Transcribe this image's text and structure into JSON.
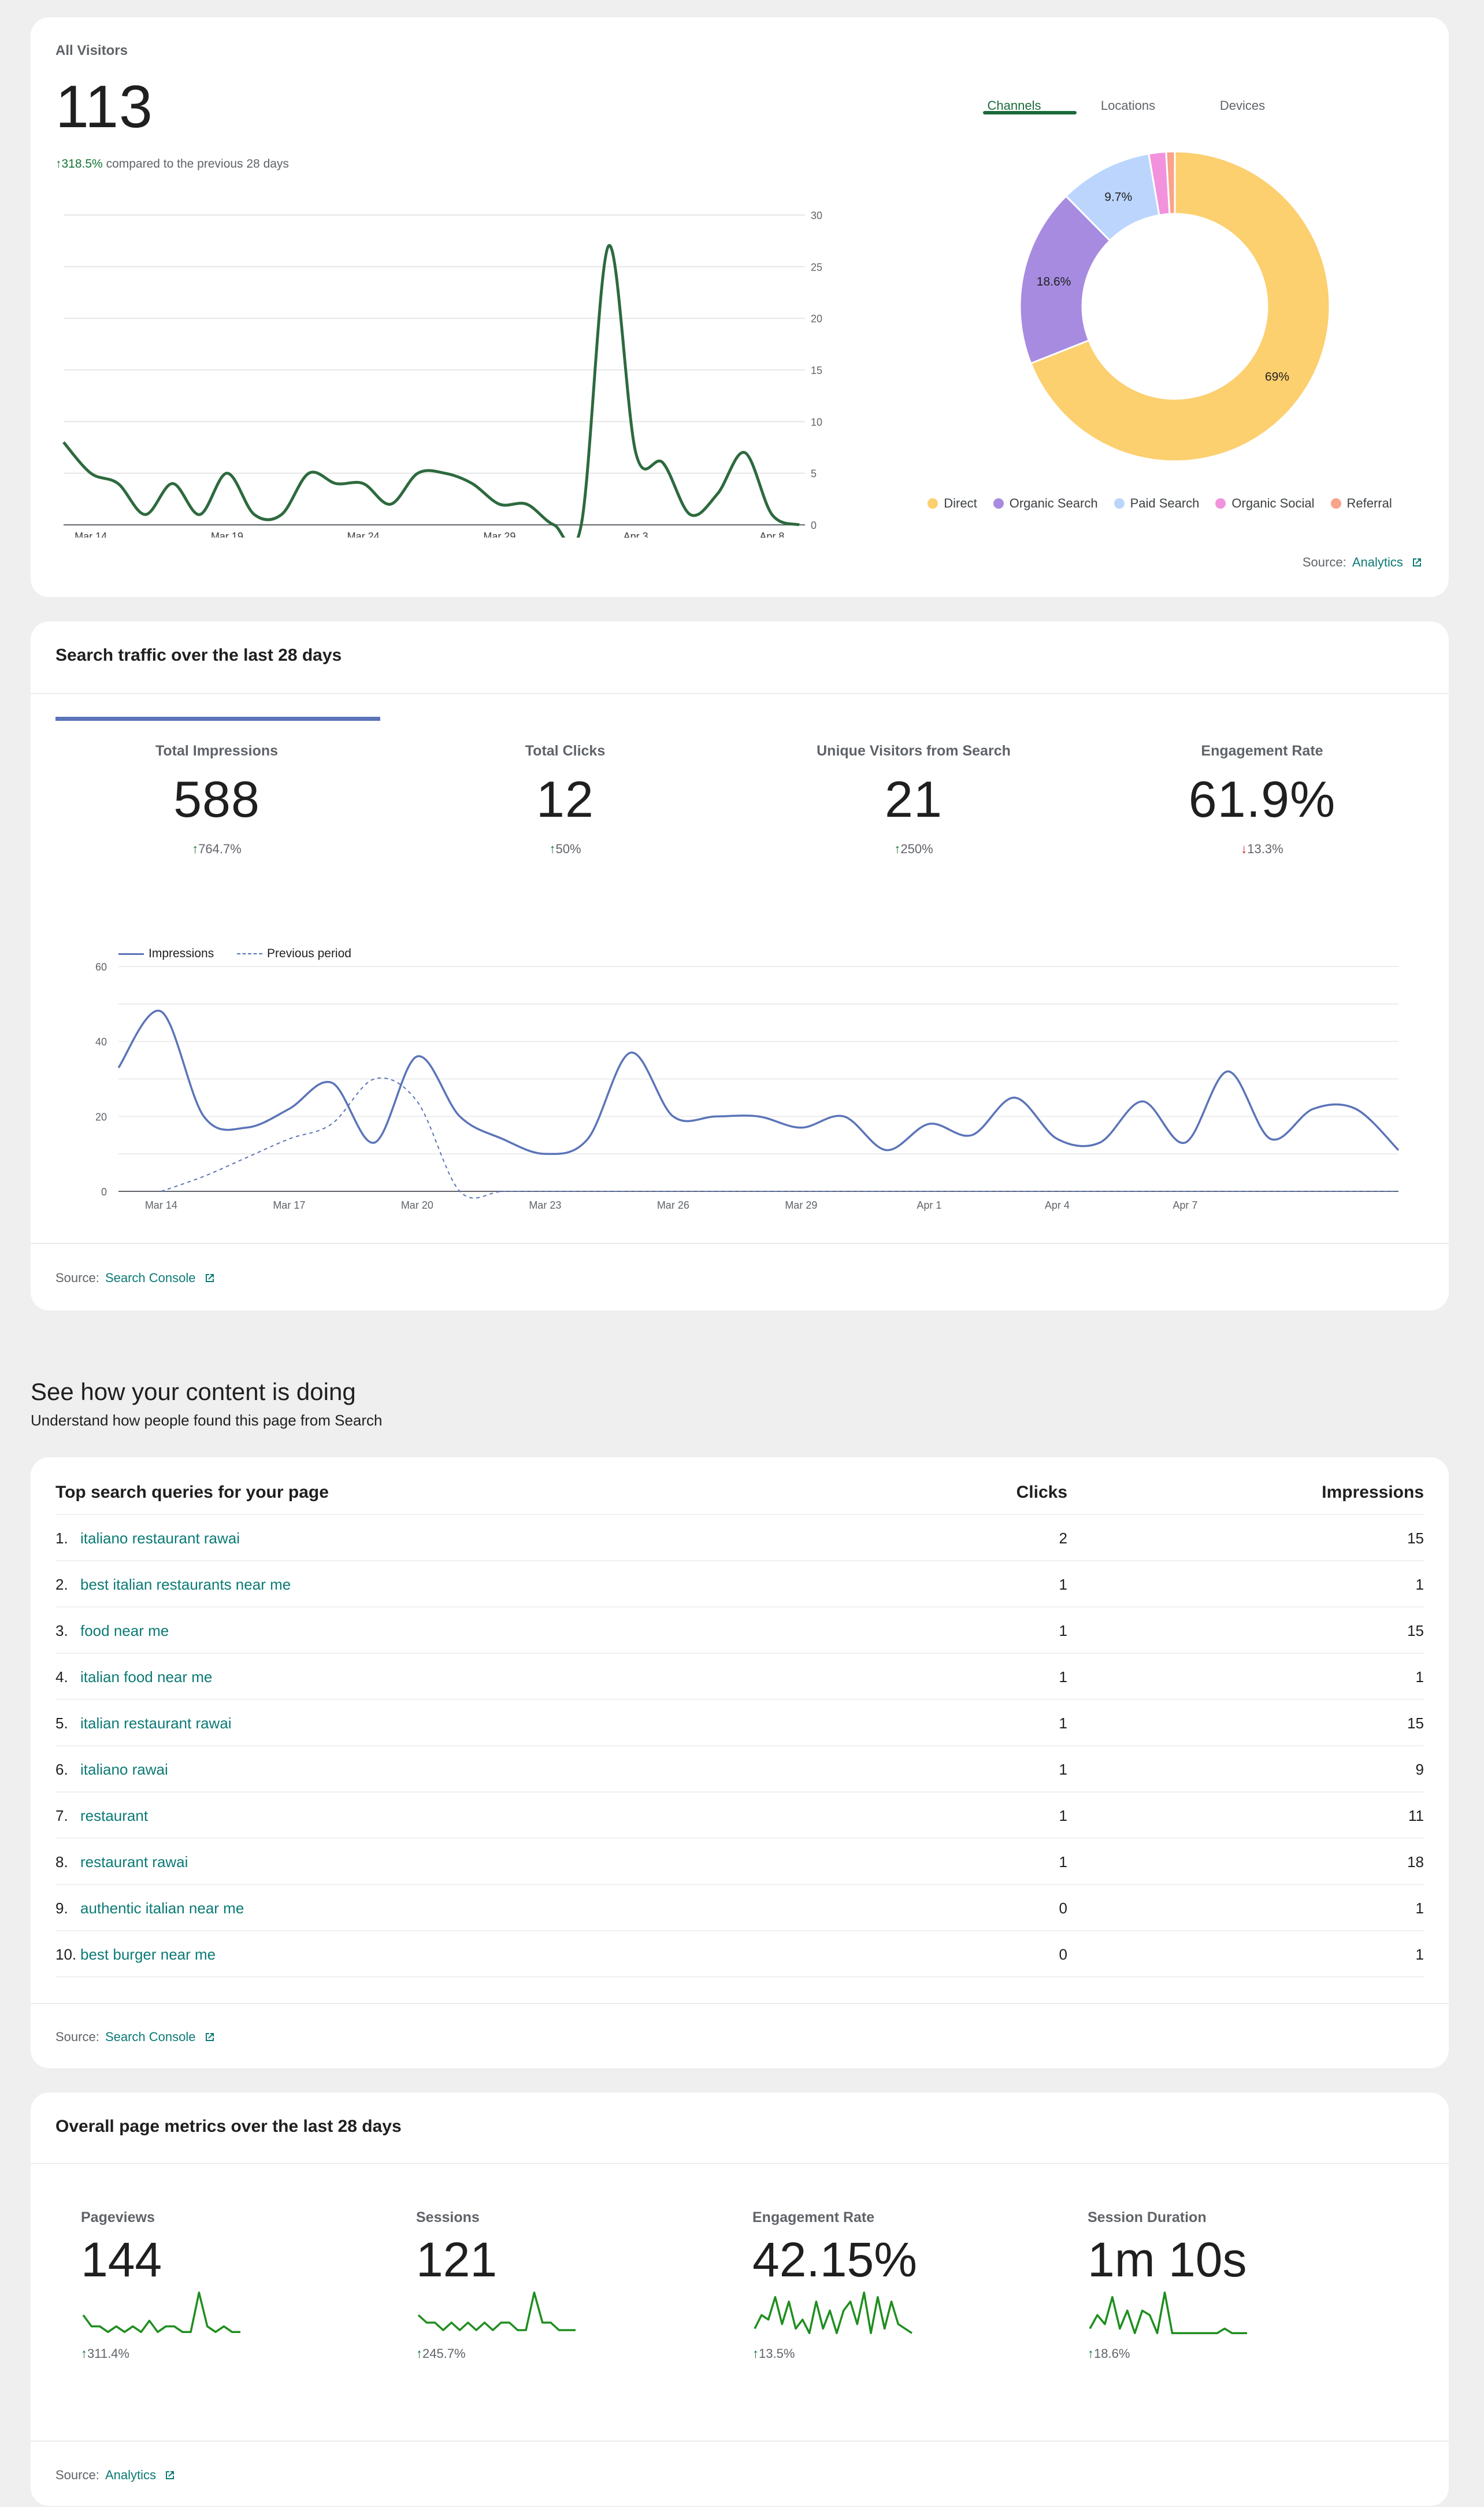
{
  "visitors_card": {
    "title": "All Visitors",
    "total": "113",
    "change": "318.5%",
    "change_suffix": "compared to the previous 28 days",
    "tabs": [
      "Channels",
      "Locations",
      "Devices"
    ],
    "source_label": "Source:",
    "source_link": "Analytics"
  },
  "search_card": {
    "title": "Search traffic over the last 28 days",
    "stats": [
      {
        "label": "Total Impressions",
        "value": "588",
        "change": "764.7%",
        "direction": "up"
      },
      {
        "label": "Total Clicks",
        "value": "12",
        "change": "50%",
        "direction": "up"
      },
      {
        "label": "Unique Visitors from Search",
        "value": "21",
        "change": "250%",
        "direction": "up"
      },
      {
        "label": "Engagement Rate",
        "value": "61.9%",
        "change": "13.3%",
        "direction": "down"
      }
    ],
    "legend": {
      "impressions": "Impressions",
      "previous": "Previous period"
    },
    "source_label": "Source:",
    "source_link": "Search Console"
  },
  "content_section": {
    "title": "See how your content is doing",
    "subtitle": "Understand how people found this page from Search"
  },
  "queries_card": {
    "headers": {
      "query": "Top search queries for your page",
      "clicks": "Clicks",
      "impressions": "Impressions"
    },
    "rows": [
      {
        "rank": "1.",
        "query": "italiano restaurant rawai",
        "clicks": "2",
        "impressions": "15"
      },
      {
        "rank": "2.",
        "query": "best italian restaurants near me",
        "clicks": "1",
        "impressions": "1"
      },
      {
        "rank": "3.",
        "query": "food near me",
        "clicks": "1",
        "impressions": "15"
      },
      {
        "rank": "4.",
        "query": "italian food near me",
        "clicks": "1",
        "impressions": "1"
      },
      {
        "rank": "5.",
        "query": "italian restaurant rawai",
        "clicks": "1",
        "impressions": "15"
      },
      {
        "rank": "6.",
        "query": "italiano rawai",
        "clicks": "1",
        "impressions": "9"
      },
      {
        "rank": "7.",
        "query": "restaurant",
        "clicks": "1",
        "impressions": "11"
      },
      {
        "rank": "8.",
        "query": "restaurant rawai",
        "clicks": "1",
        "impressions": "18"
      },
      {
        "rank": "9.",
        "query": "authentic italian near me",
        "clicks": "0",
        "impressions": "1"
      },
      {
        "rank": "10.",
        "query": "best burger near me",
        "clicks": "0",
        "impressions": "1"
      }
    ],
    "source_label": "Source:",
    "source_link": "Search Console"
  },
  "metrics_card": {
    "title": "Overall page metrics over the last 28 days",
    "metrics": [
      {
        "label": "Pageviews",
        "value": "144",
        "change": "311.4%"
      },
      {
        "label": "Sessions",
        "value": "121",
        "change": "245.7%"
      },
      {
        "label": "Engagement Rate",
        "value": "42.15%",
        "change": "13.5%"
      },
      {
        "label": "Session Duration",
        "value": "1m 10s",
        "change": "18.6%"
      }
    ],
    "source_label": "Source:",
    "source_link": "Analytics"
  },
  "colors": {
    "green": "#2d6a3e",
    "blue": "#5b74b8",
    "link": "#0b7a75",
    "spark": "#1e8e1e"
  },
  "chart_data": [
    {
      "type": "line",
      "title": "All Visitors",
      "x_ticks": [
        "Mar 14",
        "Mar 19",
        "Mar 24",
        "Mar 29",
        "Apr 3",
        "Apr 8"
      ],
      "x": [
        0,
        1,
        2,
        3,
        4,
        5,
        6,
        7,
        8,
        9,
        10,
        11,
        12,
        13,
        14,
        15,
        16,
        17,
        18,
        19,
        20,
        21,
        22,
        23,
        24,
        25,
        26,
        27
      ],
      "values": [
        8,
        5,
        4,
        1,
        4,
        1,
        5,
        1,
        1,
        5,
        4,
        4,
        2,
        5,
        5,
        4,
        2,
        2,
        0,
        0,
        27,
        7,
        6,
        1,
        3,
        7,
        1,
        0
      ],
      "y_ticks": [
        "0",
        "5",
        "10",
        "15",
        "20",
        "25",
        "30"
      ],
      "ylim": [
        0,
        30
      ],
      "color": "#2d6a3e"
    },
    {
      "type": "pie",
      "title": "Channels",
      "labels": [
        "Direct",
        "Organic Search",
        "Paid Search",
        "Organic Social",
        "Referral"
      ],
      "values": [
        69,
        18.6,
        9.7,
        1.8,
        0.9
      ],
      "slice_labels": [
        "69%",
        "18.6%",
        "9.7%",
        "",
        ""
      ],
      "colors": [
        "#fccf6f",
        "#a78be0",
        "#bcd5fd",
        "#f292dc",
        "#f8a38a"
      ]
    },
    {
      "type": "line",
      "title": "Search traffic",
      "x_ticks": [
        "Mar 14",
        "Mar 17",
        "Mar 20",
        "Mar 23",
        "Mar 26",
        "Mar 29",
        "Apr 1",
        "Apr 4",
        "Apr 7"
      ],
      "series": [
        {
          "name": "Impressions",
          "values": [
            33,
            48,
            20,
            17,
            22,
            29,
            13,
            36,
            20,
            14,
            10,
            14,
            37,
            20,
            20,
            20,
            17,
            20,
            11,
            18,
            15,
            25,
            14,
            13,
            24,
            13,
            32,
            14,
            22,
            22,
            11
          ]
        },
        {
          "name": "Previous period",
          "values": [
            null,
            0,
            4,
            9,
            14,
            18,
            30,
            24,
            0,
            0,
            0,
            0,
            0,
            0,
            0,
            0,
            0,
            0,
            0,
            0,
            0,
            0,
            0,
            0,
            0,
            0,
            0,
            0,
            0,
            0,
            0
          ]
        }
      ],
      "y_ticks": [
        "0",
        "20",
        "40",
        "60"
      ],
      "ylim": [
        0,
        60
      ]
    },
    {
      "type": "line",
      "title": "Pageviews",
      "values": [
        4,
        2,
        2,
        1,
        2,
        1,
        2,
        1,
        3,
        1,
        2,
        2,
        1,
        1,
        8,
        2,
        1,
        2,
        1,
        1
      ]
    },
    {
      "type": "line",
      "title": "Sessions",
      "values": [
        3,
        2,
        2,
        1,
        2,
        1,
        2,
        1,
        2,
        1,
        2,
        2,
        1,
        1,
        6,
        2,
        2,
        1,
        1,
        1
      ]
    },
    {
      "type": "line",
      "title": "Engagement Rate",
      "values": [
        2,
        5,
        4,
        9,
        3,
        8,
        2,
        4,
        1,
        8,
        2,
        6,
        1,
        6,
        8,
        3,
        10,
        1,
        9,
        2,
        8,
        3,
        2,
        1
      ]
    },
    {
      "type": "line",
      "title": "Session Duration",
      "values": [
        2,
        5,
        3,
        9,
        2,
        6,
        1,
        6,
        5,
        1,
        10,
        1,
        1,
        1,
        1,
        1,
        1,
        1,
        2,
        1,
        1,
        1
      ]
    }
  ]
}
